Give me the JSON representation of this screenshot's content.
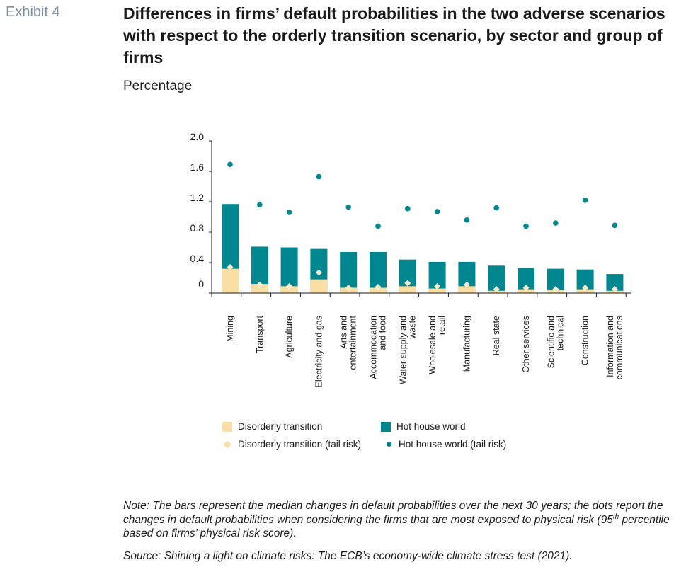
{
  "exhibit": "Exhibit 4",
  "title": "Differences in firms’ default probabilities in the two adverse scenarios with respect to the orderly transition scenario, by sector and group of firms",
  "subtitle": "Percentage",
  "colors": {
    "disorderly": "#fbdea3",
    "hothouse": "#00868f",
    "disorderly_tail": "#fbdea3",
    "hothouse_tail": "#00868f"
  },
  "legend": {
    "disorderly": "Disorderly transition",
    "hothouse": "Hot house world",
    "disorderly_tail": "Disorderly transition (tail risk)",
    "hothouse_tail": "Hot house world (tail risk)"
  },
  "note_pre": "Note: The bars represent the median changes in default probabilities over the next 30 years; the dots report the changes in default probabilities when considering the firms that are most exposed to physical risk (95",
  "note_sup": "th",
  "note_post": " percentile based on firms’ physical risk score).",
  "source": "Source: Shining a light on climate risks: The ECB’s economy-wide climate stress test (2021).",
  "chart_data": {
    "type": "bar",
    "ylim": [
      0,
      2.0
    ],
    "yticks": [
      "2.0",
      "1.6",
      "1.2",
      "0.8",
      "0.4",
      "0"
    ],
    "ytick_values": [
      2.0,
      1.6,
      1.2,
      0.8,
      0.4,
      0
    ],
    "categories": [
      [
        "Mining"
      ],
      [
        "Transport"
      ],
      [
        "Agriculture"
      ],
      [
        "Electricity and gas"
      ],
      [
        "Arts and",
        "entertainment"
      ],
      [
        "Accommodation",
        "and food"
      ],
      [
        "Water supply and",
        "waste"
      ],
      [
        "Wholesale and",
        "retail"
      ],
      [
        "Manufacturing"
      ],
      [
        "Real state"
      ],
      [
        "Other services"
      ],
      [
        "Scientific and",
        "technical"
      ],
      [
        "Construction"
      ],
      [
        "Information and",
        "communications"
      ]
    ],
    "series": [
      {
        "name": "Disorderly transition",
        "kind": "bar",
        "values": [
          0.32,
          0.12,
          0.09,
          0.18,
          0.07,
          0.07,
          0.09,
          0.06,
          0.09,
          0.03,
          0.05,
          0.04,
          0.05,
          0.03
        ]
      },
      {
        "name": "Hot house world",
        "kind": "bar",
        "values": [
          1.17,
          0.61,
          0.6,
          0.58,
          0.54,
          0.54,
          0.44,
          0.41,
          0.41,
          0.36,
          0.33,
          0.32,
          0.31,
          0.25
        ]
      },
      {
        "name": "Disorderly transition (tail risk)",
        "kind": "diamond",
        "values": [
          0.34,
          0.11,
          0.09,
          0.27,
          0.07,
          0.08,
          0.13,
          0.09,
          0.11,
          0.05,
          0.07,
          0.05,
          0.07,
          0.05
        ]
      },
      {
        "name": "Hot house world (tail risk)",
        "kind": "dot",
        "values": [
          1.69,
          1.16,
          1.06,
          1.53,
          1.13,
          0.88,
          1.11,
          1.07,
          0.96,
          1.12,
          0.88,
          0.92,
          1.22,
          0.89
        ]
      }
    ]
  }
}
